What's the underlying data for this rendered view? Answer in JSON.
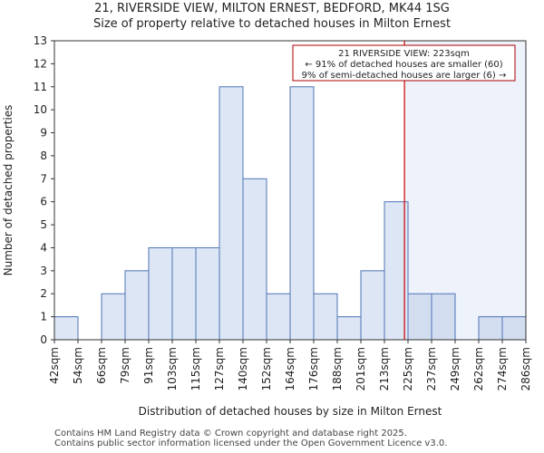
{
  "header": {
    "title_line1": "21, RIVERSIDE VIEW, MILTON ERNEST, BEDFORD, MK44 1SG",
    "title_line2": "Size of property relative to detached houses in Milton Ernest"
  },
  "footer": {
    "line1": "Contains HM Land Registry data © Crown copyright and database right 2025.",
    "line2": "Contains public sector information licensed under the Open Government Licence v3.0."
  },
  "chart_data": {
    "type": "bar",
    "title": "Size of property relative to detached houses in Milton Ernest",
    "xlabel": "Distribution of detached houses by size in Milton Ernest",
    "ylabel": "Number of detached properties",
    "bin_edges": [
      "42sqm",
      "54sqm",
      "66sqm",
      "79sqm",
      "91sqm",
      "103sqm",
      "115sqm",
      "127sqm",
      "140sqm",
      "152sqm",
      "164sqm",
      "176sqm",
      "188sqm",
      "201sqm",
      "213sqm",
      "225sqm",
      "237sqm",
      "249sqm",
      "262sqm",
      "274sqm",
      "286sqm"
    ],
    "values": [
      1,
      0,
      2,
      3,
      4,
      4,
      4,
      11,
      7,
      2,
      11,
      2,
      1,
      3,
      6,
      2,
      2,
      0,
      1,
      1
    ],
    "ylim": [
      0,
      13
    ],
    "yticks": [
      0,
      1,
      2,
      3,
      4,
      5,
      6,
      7,
      8,
      9,
      10,
      11,
      12,
      13
    ],
    "grid": false,
    "marker_value": 223,
    "marker_bin_position": 14.85,
    "highlight_from_bin": 15,
    "colors": {
      "bar_fill": "#dce6f4",
      "bar_fill_highlight": "#d2ddf0",
      "bar_edge": "#4f74b6",
      "highlight_region": "#eef2fb",
      "marker_line": "#cc0000",
      "annotation_border": "#aa0000"
    },
    "annotation": {
      "line1": "21 RIVERSIDE VIEW: 223sqm",
      "line2": "← 91% of detached houses are smaller (60)",
      "line3": "9% of semi-detached houses are larger (6) →"
    }
  }
}
